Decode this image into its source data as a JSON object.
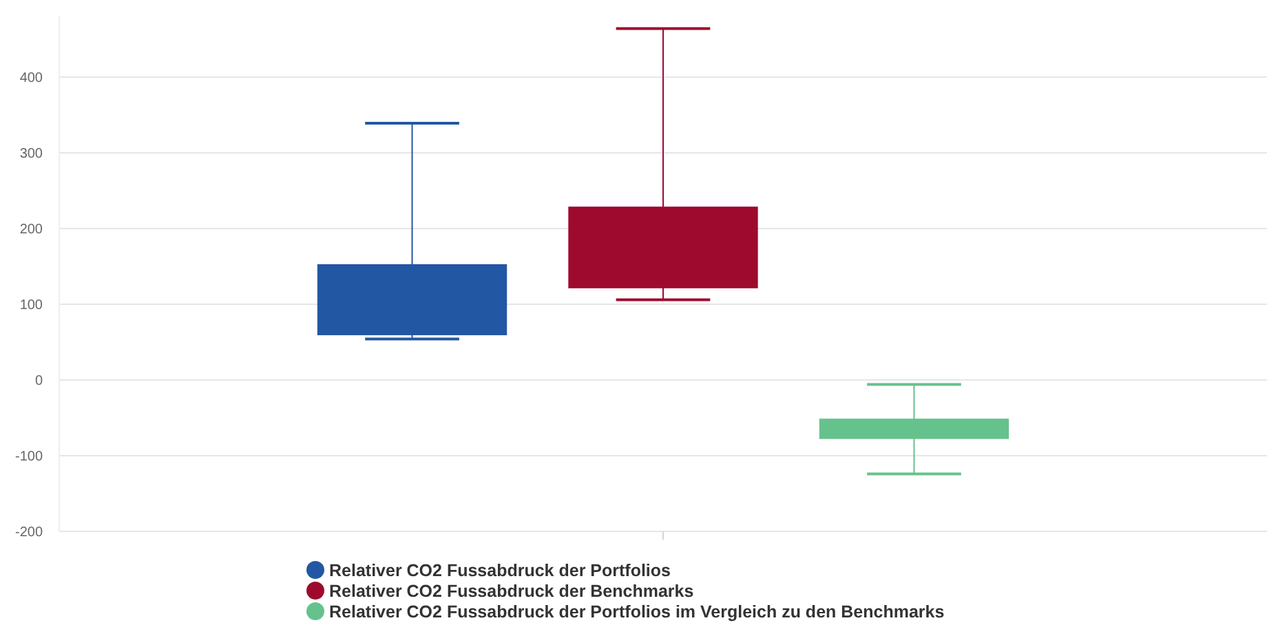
{
  "chart_data": {
    "type": "box",
    "categories": [
      null
    ],
    "ylim": [
      -200,
      480
    ],
    "yticks": [
      -200,
      -100,
      0,
      100,
      200,
      300,
      400
    ],
    "grid": "y",
    "legend": "bottom",
    "series": [
      {
        "name": "Relativer CO2 Fussabdruck der Portfolios",
        "color": "#2257a3",
        "boxes": [
          {
            "low": 54,
            "q1": 60,
            "median": 100,
            "q3": 152,
            "high": 339
          }
        ]
      },
      {
        "name": "Relativer CO2 Fussabdruck der Benchmarks",
        "color": "#9e0a2e",
        "boxes": [
          {
            "low": 106,
            "q1": 122,
            "median": 170,
            "q3": 228,
            "high": 464
          }
        ]
      },
      {
        "name": "Relativer CO2 Fussabdruck der Portfolios im Vergleich zu den Benchmarks",
        "color": "#66c28c",
        "boxes": [
          {
            "low": -124,
            "q1": -77,
            "median": -65,
            "q3": -52,
            "high": -6
          }
        ]
      }
    ]
  }
}
